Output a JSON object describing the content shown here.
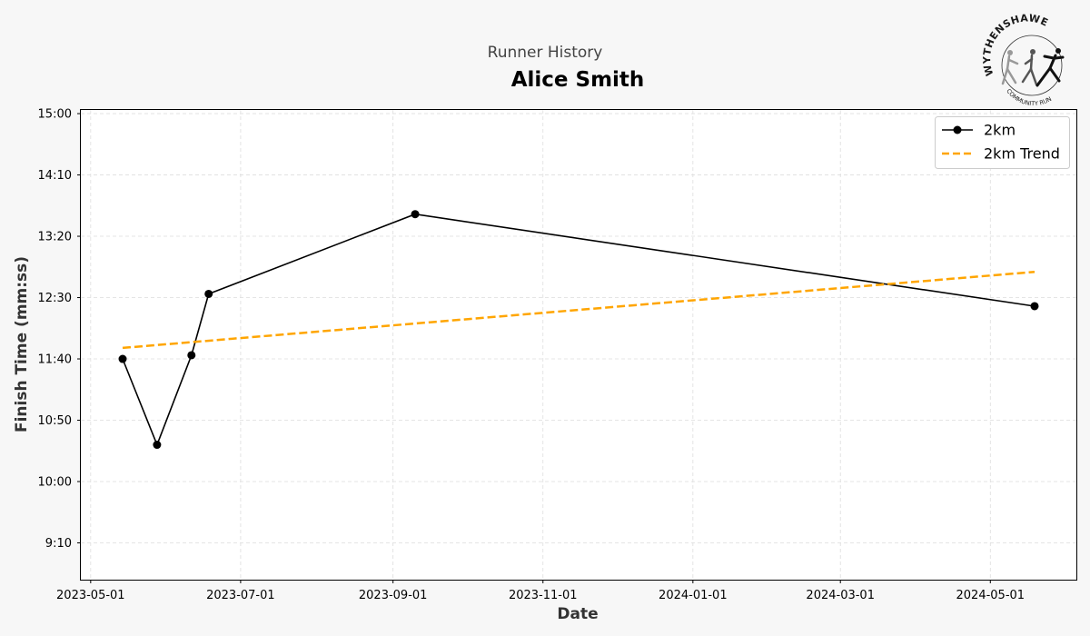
{
  "header": {
    "suptitle": "Runner History",
    "title": "Alice Smith"
  },
  "logo": {
    "name": "WYTHENSHAWE",
    "subtitle": "COMMUNITY RUN"
  },
  "chart_data": {
    "type": "line",
    "xlabel": "Date",
    "ylabel": "Finish Time (mm:ss)",
    "x_axis": {
      "scale": "date",
      "range": [
        "2023-04-27",
        "2024-06-05"
      ],
      "ticks": [
        "2023-05-01",
        "2023-07-01",
        "2023-09-01",
        "2023-11-01",
        "2024-01-01",
        "2024-03-01",
        "2024-05-01"
      ],
      "tick_labels": [
        "2023-05-01",
        "2023-07-01",
        "2023-09-01",
        "2023-11-01",
        "2024-01-01",
        "2024-03-01",
        "2024-05-01"
      ]
    },
    "y_axis": {
      "unit": "seconds",
      "range": [
        520,
        903
      ],
      "ticks": [
        550,
        600,
        650,
        700,
        750,
        800,
        850,
        900
      ],
      "tick_labels": [
        "9:10",
        "10:00",
        "10:50",
        "11:40",
        "12:30",
        "13:20",
        "14:10",
        "15:00"
      ]
    },
    "grid": true,
    "legend_position": "top-right",
    "series": [
      {
        "name": "2km",
        "style": "solid-markers",
        "color": "#000000",
        "points": [
          {
            "x": "2023-05-14",
            "y": 700
          },
          {
            "x": "2023-05-28",
            "y": 630
          },
          {
            "x": "2023-06-11",
            "y": 703
          },
          {
            "x": "2023-06-18",
            "y": 753
          },
          {
            "x": "2023-09-10",
            "y": 818
          },
          {
            "x": "2024-05-19",
            "y": 743
          }
        ]
      },
      {
        "name": "2km Trend",
        "style": "dashed",
        "color": "#ffa500",
        "points": [
          {
            "x": "2023-05-14",
            "y": 709
          },
          {
            "x": "2024-05-19",
            "y": 771
          }
        ]
      }
    ]
  }
}
